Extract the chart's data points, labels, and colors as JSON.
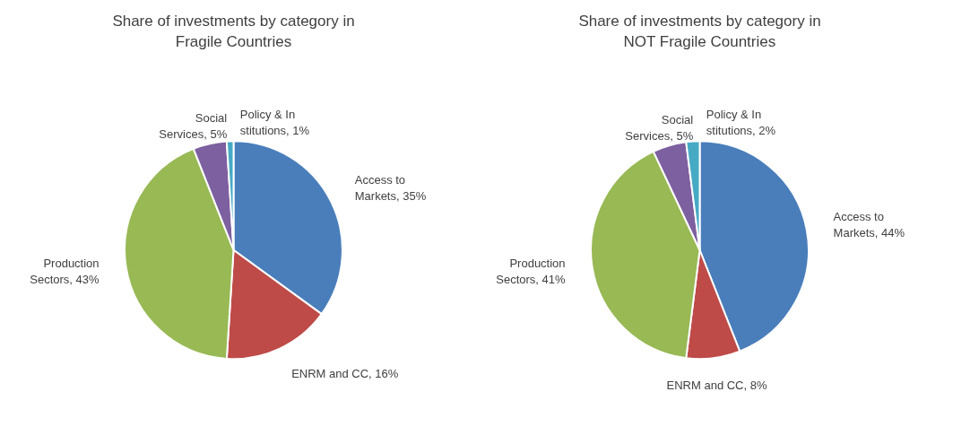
{
  "chart_data": [
    {
      "type": "pie",
      "title": "Share of investments by category in Fragile Countries",
      "categories": [
        "Access to Markets",
        "ENRM and CC",
        "Production Sectors",
        "Social Services",
        "Policy & Institutions"
      ],
      "values": [
        35,
        16,
        43,
        5,
        1
      ],
      "value_labels": [
        "35%",
        "16%",
        "43%",
        "5%",
        "1%"
      ],
      "colors": [
        "#4a7ebb",
        "#be4b48",
        "#98b954",
        "#7d60a0",
        "#46aac5"
      ]
    },
    {
      "type": "pie",
      "title": "Share of investments by category in NOT Fragile Countries",
      "categories": [
        "Access to Markets",
        "ENRM and CC",
        "Production Sectors",
        "Social Services",
        "Policy & Institutions"
      ],
      "values": [
        44,
        8,
        41,
        5,
        2
      ],
      "value_labels": [
        "44%",
        "8%",
        "41%",
        "5%",
        "2%"
      ],
      "colors": [
        "#4a7ebb",
        "#be4b48",
        "#98b954",
        "#7d60a0",
        "#46aac5"
      ]
    }
  ]
}
